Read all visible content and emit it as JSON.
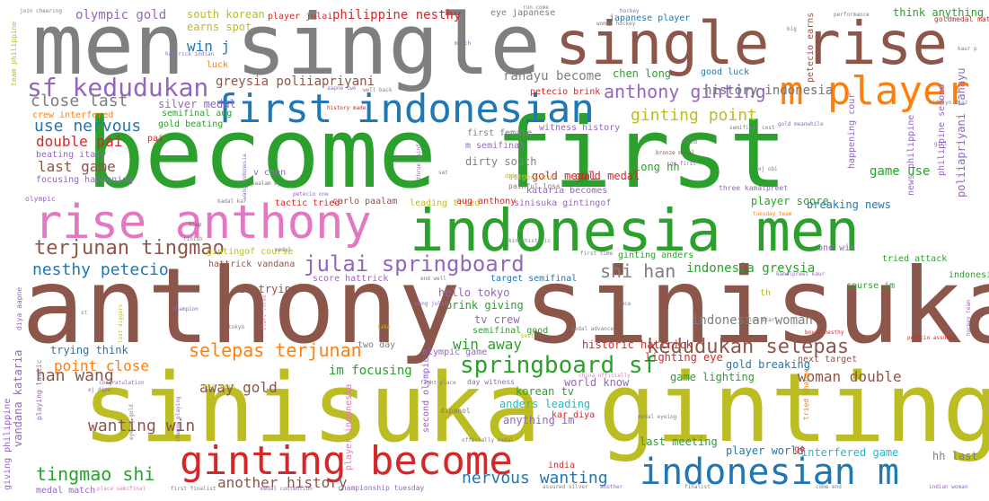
{
  "colors": {
    "background": "#ffffff",
    "gray": "#7f7f7f",
    "green": "#2ca02c",
    "brown": "#8c564b",
    "olive": "#bcbd22",
    "pink": "#e377c2",
    "blue": "#1f77b4",
    "red": "#d62728",
    "orange": "#ff7f0e",
    "purple": "#9467bd",
    "cyan": "#17becf"
  },
  "words": {
    "w01": "men single",
    "w02": "single rise",
    "w03": "become first",
    "w04": "anthony sinisuka",
    "w05": "sinisuka ginting",
    "w06": "indonesia men",
    "w07": "rise anthony",
    "w08": "first indonesian",
    "w09": "m player",
    "w10": "ginting become",
    "w11": "indonesian m",
    "w12": "sf kedudukan",
    "w13": "julai springboard",
    "w14": "springboard sf",
    "w15": "anthony ginting",
    "w16": "terjunan tingmao",
    "w17": "selepas terjunan",
    "w18": "kedudukan selepas",
    "w19": "greysia poliiapriyani",
    "w20": "shi han",
    "w21": "tingmao shi",
    "w22": "nesthy petecio",
    "w23": "ginting point",
    "w24": "close last",
    "w25": "use nervous",
    "w26": "double pai",
    "w27": "last game",
    "w28": "history indonesia",
    "w29": "philippine nesthy",
    "w30": "olympic gold",
    "w31": "south korean",
    "w32": "win j",
    "w33": "rahayu become",
    "w34": "chen long",
    "w35": "indonesian woman",
    "w36": "indonesia greysia",
    "w37": "han wang",
    "w38": "point close",
    "w39": "woman double",
    "w40": "nervous wanting",
    "w41": "wanting win",
    "w42": "another history",
    "w43": "win away",
    "w44": "away gold",
    "w45": "im focusing",
    "w46": "hello tokyo",
    "w47": "brink giving",
    "w48": "tv crew",
    "w49": "historic hattrick",
    "w50": "lighting eye",
    "w51": "gold breaking",
    "w52": "game lighting",
    "w53": "korean tv",
    "w54": "anders leading",
    "w55": "anything im",
    "w56": "world know",
    "w57": "last meeting",
    "w58": "player world",
    "w59": "interfered game",
    "w60": "hh last",
    "w61": "crew interfered",
    "w62": "semifinal aug",
    "w63": "silver medal",
    "w64": "gold beating",
    "w65": "beating italy",
    "w66": "focusing happening",
    "w67": "dirty south",
    "w68": "gold medal",
    "w69": "kar diya",
    "w70": "first female",
    "w71": "m semifinal",
    "w72": "eye japanese",
    "w73": "japanese player",
    "w74": "think anything",
    "w75": "earns spot",
    "w76": "history made",
    "w77": "good luck",
    "w78": "petecio brink",
    "w79": "witness history",
    "w80": "semifinal cest",
    "w81": "gold meanwhile",
    "w82": "bronze medal",
    "w83": "long hh",
    "w84": "go first",
    "w85": "kataria becomes",
    "w86": "player score",
    "w87": "breaking news",
    "w88": "game use",
    "w89": "score hattrick",
    "w90": "im trying",
    "w91": "tried attack",
    "w92": "one win",
    "w93": "course im",
    "w94": "trying think",
    "w95": "two day",
    "w96": "next target",
    "w97": "kamalpreet kaur",
    "w98": "target semifinal",
    "w99": "leading tried",
    "w100": "tactic tried",
    "w101": "carlo paalam",
    "w102": "aug anthony",
    "w103": "sinisuka gintingof",
    "w104": "gintingof course",
    "w105": "kadal kar",
    "w106": "king historic",
    "w107": "first time",
    "w108": "ginting anders",
    "w109": "hattrick vandana",
    "w110": "indonesia v",
    "w111": "vandana kataria",
    "w112": "playing tactic",
    "w113": "giving philippine",
    "w114": "history indonesia",
    "w115": "gold medal",
    "w116": "luck",
    "w117": "run come",
    "w118": "player julai",
    "w119": "join cheering",
    "w120": "team philippine",
    "w121": "hattrick indian",
    "w122": "aapne two",
    "w123": "well back",
    "w124": "hidilyn diaz",
    "w125": "kaur p",
    "w126": "petecio earns",
    "w127": "goldmedal match",
    "w128": "happening cour",
    "w129": "philippine second",
    "w130": "poliiapriyani rahayu",
    "w131": "news philippine",
    "w132": "v chen",
    "w133": "paalam ej",
    "w134": "round",
    "w135": "girl",
    "w136": "olympic",
    "w137": "keep",
    "w138": "finish",
    "w139": "end well",
    "w140": "semifinal good",
    "w141": "olympic game",
    "w142": "fight place",
    "w143": "congratulation",
    "w144": "back sabus",
    "w145": "second olympic",
    "w146": "day witness",
    "w147": "china officially",
    "w148": "medal eyeing",
    "w149": "tried change",
    "w150": "change playing",
    "w151": "eyeing gold",
    "w152": "player indonesia",
    "w153": "india",
    "w154": "officially medal",
    "w155": "championship tuesday",
    "w156": "assured silver",
    "w157": "another",
    "w158": "finalist",
    "w159": "come end",
    "w160": "indian woman",
    "w161": "medal match",
    "w162": "place semifinal",
    "w163": "first finalist",
    "w164": "medal contention",
    "w165": "boxer nesthy",
    "w166": "petecio assured",
    "w167": "hockey team",
    "w168": "medal advance",
    "w169": "slow start",
    "w170": "race",
    "w171": "mang julai",
    "w172": "start three",
    "w173": "tokyo",
    "w174": "champion",
    "w175": "lost diggers",
    "w176": "diya aapne",
    "w177": "ej dipa",
    "w178": "th",
    "w179": "dipanol",
    "w180": "go",
    "w181": "take",
    "w182": "best",
    "w183": "hockey",
    "w184": "set",
    "w185": "throe painful",
    "w186": "dtigers run",
    "w187": "painful loss",
    "w188": "three kamalpreet",
    "w189": "ej obi",
    "w190": "woman hockey",
    "w191": "match",
    "w192": "big",
    "w193": "performance",
    "w194": "tuesday team",
    "w195": "wang indonesia",
    "w196": "st",
    "w197": "pai",
    "w198": "petecio one",
    "w199": "medal",
    "w200": "dtigers"
  }
}
